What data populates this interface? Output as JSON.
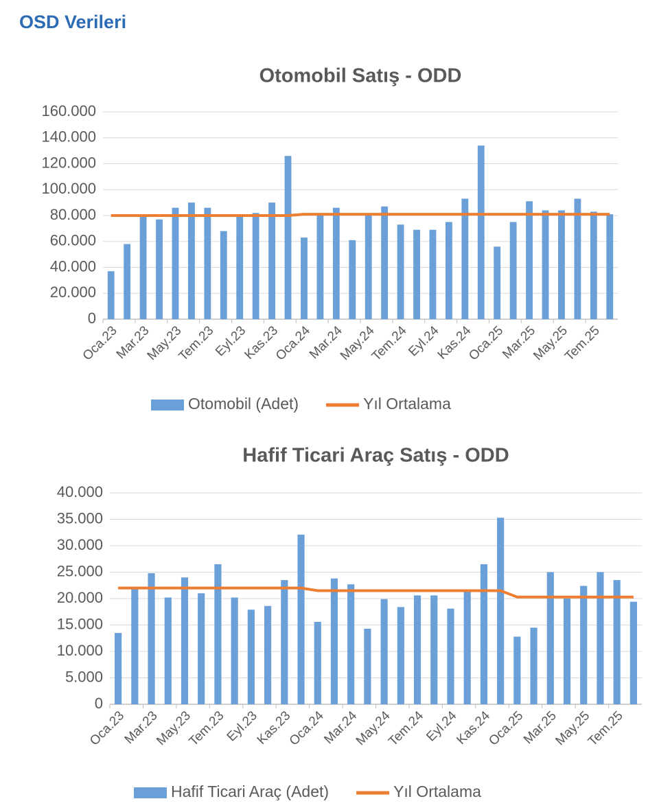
{
  "header": {
    "title": "OSD Verileri"
  },
  "chart_data": [
    {
      "type": "combo",
      "title": "Otomobil Satış - ODD",
      "categories": [
        "Oca.23",
        null,
        "Mar.23",
        null,
        "May.23",
        null,
        "Tem.23",
        null,
        "Eyl.23",
        null,
        "Kas.23",
        null,
        "Oca.24",
        null,
        "Mar.24",
        null,
        "May.24",
        null,
        "Tem.24",
        null,
        "Eyl.24",
        null,
        "Kas.24",
        null,
        "Oca.25",
        null,
        "Mar.25",
        null,
        "May.25",
        null,
        "Tem.25",
        null
      ],
      "series": [
        {
          "name": "Otomobil (Adet)",
          "type": "bar",
          "color": "#6a9fd8",
          "values": [
            37000,
            58000,
            79000,
            77000,
            86000,
            90000,
            86000,
            68000,
            79000,
            82000,
            90000,
            126000,
            63000,
            80000,
            86000,
            61000,
            80000,
            87000,
            73000,
            69000,
            69000,
            75000,
            93000,
            134000,
            56000,
            75000,
            91000,
            84000,
            84000,
            93000,
            83000,
            81000
          ]
        },
        {
          "name": "Yıl Ortalama",
          "type": "line",
          "color": "#ed7d31",
          "values": [
            80000,
            80000,
            80000,
            80000,
            80000,
            80000,
            80000,
            80000,
            80000,
            80000,
            80000,
            80000,
            81000,
            81000,
            81000,
            81000,
            81000,
            81000,
            81000,
            81000,
            81000,
            81000,
            81000,
            81000,
            81000,
            81000,
            81000,
            81000,
            81000,
            81000,
            81000,
            81000
          ]
        }
      ],
      "ylim": [
        0,
        160000
      ],
      "yticks": [
        0,
        {
          "value": 20000,
          "label": "20.000"
        },
        {
          "value": 40000,
          "label": "40.000"
        },
        {
          "value": 60000,
          "label": "60.000"
        },
        {
          "value": 80000,
          "label": "80.000"
        },
        {
          "value": 100000,
          "label": "100.000"
        },
        {
          "value": 120000,
          "label": "120.000"
        },
        {
          "value": 140000,
          "label": "140.000"
        },
        {
          "value": 160000,
          "label": "160.000"
        }
      ],
      "grid": true,
      "legend": "bottom"
    },
    {
      "type": "combo",
      "title": "Hafif Ticari Araç Satış - ODD",
      "categories": [
        "Oca.23",
        null,
        "Mar.23",
        null,
        "May.23",
        null,
        "Tem.23",
        null,
        "Eyl.23",
        null,
        "Kas.23",
        null,
        "Oca.24",
        null,
        "Mar.24",
        null,
        "May.24",
        null,
        "Tem.24",
        null,
        "Eyl.24",
        null,
        "Kas.24",
        null,
        "Oca.25",
        null,
        "Mar.25",
        null,
        "May.25",
        null,
        "Tem.25",
        null
      ],
      "series": [
        {
          "name": "Hafif Ticari Araç (Adet)",
          "type": "bar",
          "color": "#6a9fd8",
          "values": [
            13500,
            22000,
            24800,
            20200,
            24000,
            21000,
            26500,
            20200,
            17900,
            18600,
            23500,
            32100,
            15600,
            23800,
            22700,
            14300,
            19900,
            18400,
            20600,
            20600,
            18100,
            21300,
            26500,
            35300,
            12800,
            14500,
            25000,
            20000,
            22400,
            25000,
            23500,
            19400
          ]
        },
        {
          "name": "Yıl Ortalama",
          "type": "line",
          "color": "#ed7d31",
          "values": [
            22000,
            22000,
            22000,
            22000,
            22000,
            22000,
            22000,
            22000,
            22000,
            22000,
            22000,
            22000,
            21500,
            21500,
            21500,
            21500,
            21500,
            21500,
            21500,
            21500,
            21500,
            21500,
            21500,
            21500,
            20300,
            20300,
            20300,
            20300,
            20300,
            20300,
            20300,
            20300
          ]
        }
      ],
      "ylim": [
        0,
        40000
      ],
      "yticks": [
        0,
        {
          "value": 5000,
          "label": "5.000"
        },
        {
          "value": 10000,
          "label": "10.000"
        },
        {
          "value": 15000,
          "label": "15.000"
        },
        {
          "value": 20000,
          "label": "20.000"
        },
        {
          "value": 25000,
          "label": "25.000"
        },
        {
          "value": 30000,
          "label": "30.000"
        },
        {
          "value": 35000,
          "label": "35.000"
        },
        {
          "value": 40000,
          "label": "40.000"
        }
      ],
      "grid": true,
      "legend": "bottom"
    }
  ]
}
